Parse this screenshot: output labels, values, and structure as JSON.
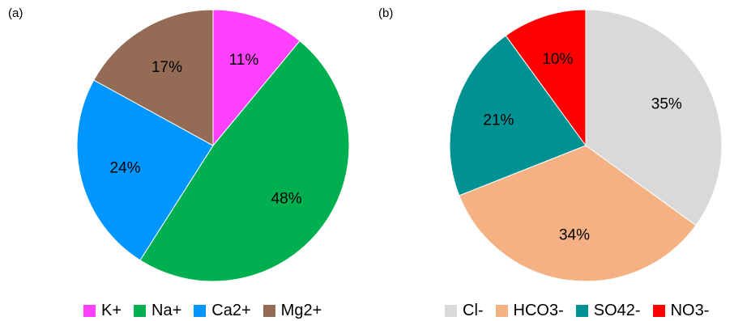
{
  "chart_data": [
    {
      "type": "pie",
      "panel_label": "(a)",
      "categories": [
        "K+",
        "Na+",
        "Ca2+",
        "Mg2+"
      ],
      "values": [
        11,
        48,
        24,
        17
      ],
      "value_labels": [
        "11%",
        "48%",
        "24%",
        "17%"
      ],
      "colors": [
        "#ff40ff",
        "#00b050",
        "#0096ff",
        "#946b54"
      ],
      "start_angle": "12 o'clock",
      "direction": "clockwise",
      "legend": "bottom"
    },
    {
      "type": "pie",
      "panel_label": "(b)",
      "categories": [
        "Cl-",
        "HCO3-",
        "SO42-",
        "NO3-"
      ],
      "values": [
        35,
        34,
        21,
        10
      ],
      "value_labels": [
        "35%",
        "34%",
        "21%",
        "10%"
      ],
      "colors": [
        "#d9d9d9",
        "#f4b183",
        "#009193",
        "#ff0000"
      ],
      "start_angle": "12 o'clock",
      "direction": "clockwise",
      "legend": "bottom"
    }
  ]
}
